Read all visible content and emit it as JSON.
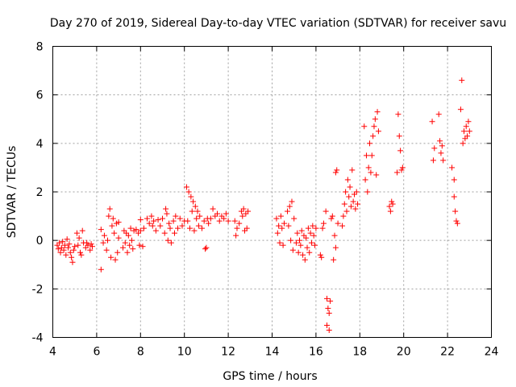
{
  "chart_data": {
    "type": "scatter",
    "title": "Day 270 of 2019, Sidereal Day-to-day VTEC variation (SDTVAR) for receiver savu",
    "xlabel": "GPS time / hours",
    "ylabel": "SDTVAR / TECUs",
    "xlim": [
      4,
      24
    ],
    "ylim": [
      -4,
      8
    ],
    "xticks": [
      "4",
      "6",
      "8",
      "10",
      "12",
      "14",
      "16",
      "18",
      "20",
      "22",
      "24"
    ],
    "yticks": [
      "-4",
      "-2",
      "0",
      "2",
      "4",
      "6",
      "8"
    ],
    "marker": "+",
    "series_color": "#ff0000",
    "grid": true,
    "series": [
      {
        "name": "SDTVAR",
        "points": [
          [
            4.2,
            -0.2
          ],
          [
            4.25,
            -0.35
          ],
          [
            4.3,
            -0.1
          ],
          [
            4.35,
            -0.5
          ],
          [
            4.4,
            -0.3
          ],
          [
            4.45,
            -0.05
          ],
          [
            4.5,
            -0.4
          ],
          [
            4.55,
            -0.2
          ],
          [
            4.6,
            -0.6
          ],
          [
            4.65,
            0.05
          ],
          [
            4.7,
            -0.3
          ],
          [
            4.75,
            -0.15
          ],
          [
            4.8,
            -0.5
          ],
          [
            4.85,
            -0.7
          ],
          [
            4.9,
            -0.9
          ],
          [
            4.95,
            -0.4
          ],
          [
            5.0,
            -0.25
          ],
          [
            5.1,
            0.3
          ],
          [
            5.15,
            -0.2
          ],
          [
            5.2,
            0.1
          ],
          [
            5.25,
            -0.5
          ],
          [
            5.3,
            -0.6
          ],
          [
            5.35,
            0.4
          ],
          [
            5.4,
            -0.1
          ],
          [
            5.5,
            -0.3
          ],
          [
            5.55,
            -0.1
          ],
          [
            5.6,
            -0.2
          ],
          [
            5.7,
            -0.4
          ],
          [
            5.75,
            -0.15
          ],
          [
            5.8,
            -0.25
          ],
          [
            6.2,
            0.45
          ],
          [
            6.2,
            -1.2
          ],
          [
            6.3,
            -0.1
          ],
          [
            6.35,
            0.2
          ],
          [
            6.45,
            -0.4
          ],
          [
            6.5,
            0.0
          ],
          [
            6.55,
            1.0
          ],
          [
            6.6,
            1.3
          ],
          [
            6.65,
            -0.7
          ],
          [
            6.7,
            0.6
          ],
          [
            6.75,
            0.9
          ],
          [
            6.8,
            0.3
          ],
          [
            6.85,
            -0.8
          ],
          [
            6.9,
            0.7
          ],
          [
            6.95,
            -0.5
          ],
          [
            7.0,
            0.75
          ],
          [
            7.0,
            0.1
          ],
          [
            7.2,
            -0.3
          ],
          [
            7.25,
            0.4
          ],
          [
            7.3,
            -0.1
          ],
          [
            7.35,
            0.3
          ],
          [
            7.4,
            -0.5
          ],
          [
            7.45,
            0.2
          ],
          [
            7.5,
            -0.2
          ],
          [
            7.55,
            0.5
          ],
          [
            7.6,
            0.0
          ],
          [
            7.65,
            -0.35
          ],
          [
            7.7,
            0.4
          ],
          [
            7.8,
            0.45
          ],
          [
            7.9,
            0.3
          ],
          [
            7.95,
            -0.2
          ],
          [
            8.0,
            0.4
          ],
          [
            8.0,
            0.85
          ],
          [
            8.1,
            -0.25
          ],
          [
            8.15,
            0.5
          ],
          [
            8.3,
            0.9
          ],
          [
            8.4,
            0.7
          ],
          [
            8.5,
            1.0
          ],
          [
            8.55,
            0.6
          ],
          [
            8.6,
            0.8
          ],
          [
            8.7,
            0.4
          ],
          [
            8.8,
            0.85
          ],
          [
            8.9,
            0.6
          ],
          [
            9.0,
            0.9
          ],
          [
            9.1,
            0.3
          ],
          [
            9.15,
            1.3
          ],
          [
            9.2,
            1.1
          ],
          [
            9.25,
            0.0
          ],
          [
            9.3,
            0.7
          ],
          [
            9.35,
            0.5
          ],
          [
            9.4,
            -0.1
          ],
          [
            9.5,
            0.8
          ],
          [
            9.55,
            0.3
          ],
          [
            9.6,
            1.0
          ],
          [
            9.7,
            0.5
          ],
          [
            9.8,
            0.9
          ],
          [
            9.9,
            0.6
          ],
          [
            10.0,
            0.8
          ],
          [
            10.1,
            2.2
          ],
          [
            10.15,
            0.8
          ],
          [
            10.2,
            2.0
          ],
          [
            10.25,
            0.5
          ],
          [
            10.3,
            1.8
          ],
          [
            10.35,
            1.2
          ],
          [
            10.4,
            1.6
          ],
          [
            10.45,
            0.4
          ],
          [
            10.5,
            1.4
          ],
          [
            10.55,
            0.9
          ],
          [
            10.6,
            1.2
          ],
          [
            10.65,
            0.6
          ],
          [
            10.7,
            1.0
          ],
          [
            10.8,
            0.5
          ],
          [
            10.9,
            0.8
          ],
          [
            10.95,
            -0.35
          ],
          [
            11.0,
            -0.3
          ],
          [
            11.05,
            0.9
          ],
          [
            11.1,
            0.7
          ],
          [
            11.2,
            0.9
          ],
          [
            11.3,
            1.3
          ],
          [
            11.4,
            1.0
          ],
          [
            11.5,
            1.1
          ],
          [
            11.6,
            0.8
          ],
          [
            11.7,
            1.0
          ],
          [
            11.8,
            0.9
          ],
          [
            11.9,
            1.1
          ],
          [
            12.0,
            0.8
          ],
          [
            12.3,
            0.8
          ],
          [
            12.35,
            0.2
          ],
          [
            12.4,
            0.5
          ],
          [
            12.5,
            0.7
          ],
          [
            12.6,
            1.2
          ],
          [
            12.65,
            1.0
          ],
          [
            12.7,
            1.3
          ],
          [
            12.75,
            0.4
          ],
          [
            12.8,
            1.1
          ],
          [
            12.85,
            0.5
          ],
          [
            12.9,
            1.2
          ],
          [
            14.2,
            0.9
          ],
          [
            14.25,
            0.3
          ],
          [
            14.3,
            0.6
          ],
          [
            14.35,
            -0.1
          ],
          [
            14.4,
            1.0
          ],
          [
            14.45,
            0.5
          ],
          [
            14.5,
            -0.2
          ],
          [
            14.55,
            0.7
          ],
          [
            14.7,
            1.2
          ],
          [
            14.75,
            0.6
          ],
          [
            14.8,
            1.4
          ],
          [
            14.85,
            0.0
          ],
          [
            14.9,
            1.6
          ],
          [
            14.95,
            -0.4
          ],
          [
            15.0,
            0.9
          ],
          [
            15.1,
            -0.1
          ],
          [
            15.15,
            0.3
          ],
          [
            15.2,
            -0.5
          ],
          [
            15.25,
            0.0
          ],
          [
            15.3,
            -0.2
          ],
          [
            15.35,
            0.4
          ],
          [
            15.4,
            -0.6
          ],
          [
            15.45,
            0.2
          ],
          [
            15.5,
            -0.8
          ],
          [
            15.55,
            0.1
          ],
          [
            15.6,
            -0.3
          ],
          [
            15.65,
            0.5
          ],
          [
            15.7,
            -0.5
          ],
          [
            15.75,
            0.3
          ],
          [
            15.8,
            -0.1
          ],
          [
            15.85,
            0.6
          ],
          [
            15.9,
            0.2
          ],
          [
            15.95,
            -0.2
          ],
          [
            16.0,
            0.5
          ],
          [
            16.2,
            -0.6
          ],
          [
            16.25,
            -0.7
          ],
          [
            16.3,
            0.5
          ],
          [
            16.35,
            0.7
          ],
          [
            16.45,
            1.2
          ],
          [
            16.5,
            -2.4
          ],
          [
            16.5,
            -3.5
          ],
          [
            16.55,
            -2.8
          ],
          [
            16.6,
            -3.0
          ],
          [
            16.6,
            -3.7
          ],
          [
            16.65,
            -2.5
          ],
          [
            16.7,
            0.9
          ],
          [
            16.75,
            1.0
          ],
          [
            16.8,
            -0.8
          ],
          [
            16.85,
            0.2
          ],
          [
            16.9,
            -0.3
          ],
          [
            16.9,
            2.8
          ],
          [
            16.95,
            2.9
          ],
          [
            17.0,
            0.7
          ],
          [
            17.2,
            0.6
          ],
          [
            17.25,
            1.0
          ],
          [
            17.3,
            1.5
          ],
          [
            17.35,
            2.0
          ],
          [
            17.4,
            1.2
          ],
          [
            17.45,
            2.5
          ],
          [
            17.5,
            1.8
          ],
          [
            17.55,
            2.2
          ],
          [
            17.6,
            1.4
          ],
          [
            17.65,
            2.9
          ],
          [
            17.7,
            1.6
          ],
          [
            17.75,
            1.9
          ],
          [
            17.8,
            1.3
          ],
          [
            17.85,
            2.0
          ],
          [
            17.9,
            1.5
          ],
          [
            18.2,
            4.7
          ],
          [
            18.25,
            2.5
          ],
          [
            18.3,
            3.5
          ],
          [
            18.35,
            2.0
          ],
          [
            18.4,
            3.0
          ],
          [
            18.45,
            4.0
          ],
          [
            18.5,
            2.8
          ],
          [
            18.55,
            3.5
          ],
          [
            18.6,
            4.3
          ],
          [
            18.65,
            4.7
          ],
          [
            18.7,
            5.0
          ],
          [
            18.75,
            2.7
          ],
          [
            18.8,
            5.3
          ],
          [
            18.85,
            4.5
          ],
          [
            19.35,
            1.4
          ],
          [
            19.4,
            1.2
          ],
          [
            19.45,
            1.6
          ],
          [
            19.5,
            1.5
          ],
          [
            19.7,
            2.8
          ],
          [
            19.75,
            5.2
          ],
          [
            19.8,
            4.3
          ],
          [
            19.85,
            3.7
          ],
          [
            19.9,
            2.9
          ],
          [
            19.95,
            3.0
          ],
          [
            21.3,
            4.9
          ],
          [
            21.35,
            3.3
          ],
          [
            21.4,
            3.8
          ],
          [
            21.6,
            5.2
          ],
          [
            21.65,
            4.1
          ],
          [
            21.7,
            3.6
          ],
          [
            21.75,
            3.9
          ],
          [
            21.8,
            3.3
          ],
          [
            22.2,
            3.0
          ],
          [
            22.3,
            2.5
          ],
          [
            22.3,
            1.8
          ],
          [
            22.35,
            1.2
          ],
          [
            22.4,
            0.8
          ],
          [
            22.45,
            0.7
          ],
          [
            22.6,
            5.4
          ],
          [
            22.65,
            6.6
          ],
          [
            22.7,
            4.0
          ],
          [
            22.75,
            4.5
          ],
          [
            22.8,
            4.2
          ],
          [
            22.85,
            4.7
          ],
          [
            22.9,
            4.3
          ],
          [
            22.95,
            4.9
          ],
          [
            23.0,
            4.5
          ]
        ]
      }
    ]
  }
}
